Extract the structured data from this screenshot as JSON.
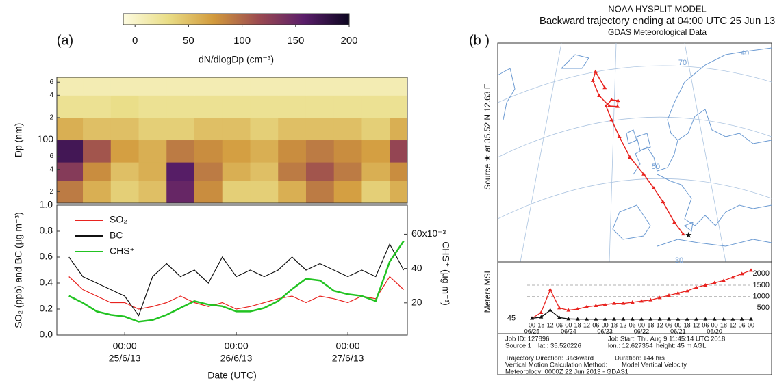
{
  "figure_labels": [
    "(a)",
    "(b )"
  ],
  "footer": [
    "Job ID: 127896",
    "Job Start: Thu Aug  9 11:45:14 UTC 2018",
    "Source 1",
    "lat.: 35.520226",
    "lon.: 12.627354",
    "height: 45 m AGL",
    "Trajectory Direction: Backward",
    "Duration: 144 hrs",
    "Vertical Motion Calculation Method:",
    "Model Vertical Velocity",
    "Meteorology: 0000Z 22 Jun 2013 - GDAS1"
  ],
  "chart_data": [
    {
      "type": "heatmap",
      "ylabel": "Dp (nm)",
      "ylog": true,
      "xlim": [
        "2013-06-24T09:24",
        "2013-06-27T12:48"
      ],
      "ylim": [
        14,
        700
      ],
      "yticks": [
        {
          "value": 20,
          "label": "2"
        },
        {
          "value": 40,
          "label": "4"
        },
        {
          "value": 60,
          "label": "6"
        },
        100,
        {
          "value": 200,
          "label": "2"
        },
        {
          "value": 400,
          "label": "4"
        },
        {
          "value": 600,
          "label": "6"
        }
      ],
      "xbins": [
        "2013-06-24T09:24",
        "2013-06-24T15:00",
        "2013-06-24T21:00",
        "2013-06-25T03:00",
        "2013-06-25T09:00",
        "2013-06-25T15:00",
        "2013-06-25T21:00",
        "2013-06-26T03:00",
        "2013-06-26T09:00",
        "2013-06-26T15:00",
        "2013-06-26T21:00",
        "2013-06-27T03:00",
        "2013-06-27T09:00",
        "2013-06-27T12:48"
      ],
      "ybins": [
        14,
        28,
        50,
        100,
        200,
        400,
        700
      ],
      "z": [
        [
          90,
          60,
          40,
          50,
          150,
          80,
          40,
          40,
          60,
          90,
          70,
          40,
          60
        ],
        [
          130,
          80,
          50,
          60,
          160,
          90,
          60,
          50,
          90,
          110,
          90,
          60,
          80
        ],
        [
          170,
          110,
          70,
          60,
          90,
          80,
          70,
          60,
          80,
          90,
          80,
          70,
          120
        ],
        [
          60,
          50,
          50,
          40,
          40,
          50,
          50,
          40,
          50,
          50,
          50,
          40,
          60
        ],
        [
          25,
          25,
          30,
          25,
          25,
          25,
          25,
          25,
          25,
          25,
          25,
          25,
          25
        ],
        [
          10,
          10,
          10,
          10,
          10,
          10,
          10,
          10,
          10,
          10,
          10,
          10,
          10
        ]
      ],
      "zlim": [
        -11,
        200
      ],
      "zticks": [
        0,
        50,
        100,
        150,
        200
      ],
      "zlabel": "dN/dlogDp (cm⁻³)",
      "colors": [
        "#fdfbe0",
        "#e9dd86",
        "#d29a3c",
        "#9b4a50",
        "#5a1e6a",
        "#0c0620"
      ]
    },
    {
      "type": "line",
      "xlabel": "Date (UTC)",
      "ylabel": "SO₂ (ppb) and BC (μg m⁻³)",
      "y2label": "CHS⁺ (μg m⁻³)",
      "x": [
        "2013-06-24T12:00",
        "2013-06-24T15:00",
        "2013-06-24T18:00",
        "2013-06-24T21:00",
        "2013-06-25T00:00",
        "2013-06-25T03:00",
        "2013-06-25T06:00",
        "2013-06-25T09:00",
        "2013-06-25T12:00",
        "2013-06-25T15:00",
        "2013-06-25T18:00",
        "2013-06-25T21:00",
        "2013-06-26T00:00",
        "2013-06-26T03:00",
        "2013-06-26T06:00",
        "2013-06-26T09:00",
        "2013-06-26T12:00",
        "2013-06-26T15:00",
        "2013-06-26T18:00",
        "2013-06-26T21:00",
        "2013-06-27T00:00",
        "2013-06-27T03:00",
        "2013-06-27T06:00",
        "2013-06-27T09:00",
        "2013-06-27T12:00"
      ],
      "xlim": [
        "2013-06-24T09:24",
        "2013-06-27T12:48"
      ],
      "xticks": [
        {
          "value": "2013-06-25T00:00",
          "label": [
            "00:00",
            "25/6/13"
          ]
        },
        {
          "value": "2013-06-26T00:00",
          "label": [
            "00:00",
            "26/6/13"
          ]
        },
        {
          "value": "2013-06-27T00:00",
          "label": [
            "00:00",
            "27/6/13"
          ]
        }
      ],
      "ylim": [
        0,
        1
      ],
      "yticks": [
        {
          "value": 0,
          "label": "0.0"
        },
        0.2,
        0.4,
        0.6,
        0.8,
        {
          "value": 1,
          "label": "1.0"
        }
      ],
      "y2lim": [
        1.2,
        76.9
      ],
      "y2ticks": [
        20,
        40,
        {
          "value": 60,
          "label": "60x10⁻³"
        }
      ],
      "legend": "top-left",
      "series": [
        {
          "name": "SO₂",
          "color": "#e8231f",
          "values": [
            0.45,
            0.35,
            0.3,
            0.25,
            0.25,
            0.2,
            0.22,
            0.25,
            0.3,
            0.25,
            0.22,
            0.25,
            0.2,
            0.22,
            0.25,
            0.28,
            0.3,
            0.25,
            0.3,
            0.28,
            0.25,
            0.3,
            0.28,
            0.45,
            0.35
          ]
        },
        {
          "name": "BC",
          "color": "#111111",
          "values": [
            0.6,
            0.45,
            0.4,
            0.35,
            0.3,
            0.15,
            0.45,
            0.55,
            0.45,
            0.5,
            0.4,
            0.6,
            0.45,
            0.5,
            0.45,
            0.5,
            0.6,
            0.5,
            0.55,
            0.5,
            0.45,
            0.5,
            0.45,
            0.7,
            0.5
          ]
        },
        {
          "name": "CHS⁺",
          "color": "#22c322",
          "axis": "y2",
          "values": [
            24,
            20,
            15,
            13,
            12,
            9,
            10,
            13,
            17,
            21,
            19,
            18,
            15,
            15,
            17,
            21,
            28,
            34,
            33,
            27,
            25,
            24,
            21,
            44,
            56
          ]
        }
      ]
    },
    {
      "type": "trajectory_map",
      "title": [
        "NOAA HYSPLIT MODEL",
        "Backward trajectory ending at 04:00 UTC 25 Jun 13",
        "GDAS Meteorological Data"
      ],
      "source_label": "Source ★ at 35.52 N 12.63 E",
      "grid_labels": [
        70,
        40,
        50,
        30
      ],
      "color": "#e8231f",
      "lon": [
        12.6,
        10.7,
        8.2,
        6.2,
        4.0,
        1.0,
        -1.3,
        -3.0,
        -4.2,
        -3.0,
        -1.6,
        -1.7,
        -3.5,
        -5.7,
        -7.1,
        -6.5,
        -4.5
      ],
      "lat": [
        35.5,
        38.1,
        42.7,
        45.8,
        48.9,
        52.7,
        57.3,
        61.1,
        64.2,
        65.6,
        65.4,
        64.1,
        64.2,
        66.5,
        69.9,
        71.9,
        68.3
      ]
    },
    {
      "type": "line",
      "ylabel": "Meters MSL",
      "grid": true,
      "start_height": 45,
      "categories": [
        "00",
        "18",
        "12",
        "06",
        "00",
        "18",
        "12",
        "06",
        "00",
        "18",
        "12",
        "06",
        "00",
        "18",
        "12",
        "06",
        "00",
        "18",
        "12",
        "06",
        "00",
        "18",
        "12",
        "06",
        "00"
      ],
      "categories2": [
        "06/25",
        null,
        null,
        null,
        "06/24",
        null,
        null,
        null,
        "06/23",
        null,
        null,
        null,
        "06/22",
        null,
        null,
        null,
        "06/21",
        null,
        null,
        null,
        "06/20",
        null,
        null,
        null,
        null
      ],
      "ylim": [
        -90,
        2460
      ],
      "yticks": [
        500,
        1000,
        1500,
        2000
      ],
      "series": [
        {
          "color": "#e8231f",
          "values": [
            45,
            300,
            1300,
            500,
            400,
            450,
            550,
            600,
            650,
            700,
            700,
            750,
            800,
            850,
            950,
            1050,
            1150,
            1250,
            1400,
            1500,
            1600,
            1700,
            1850,
            2000,
            2150
          ]
        },
        {
          "color": "#111111",
          "values": [
            45,
            100,
            400,
            80,
            20,
            10,
            10,
            10,
            10,
            10,
            10,
            10,
            10,
            10,
            10,
            10,
            10,
            10,
            10,
            10,
            10,
            10,
            10,
            10,
            10
          ]
        }
      ]
    }
  ]
}
